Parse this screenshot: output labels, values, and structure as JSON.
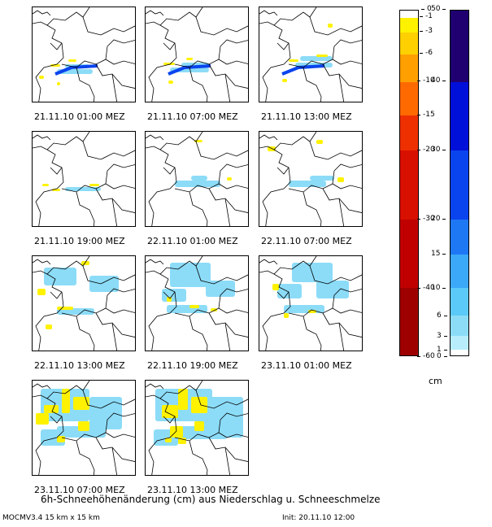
{
  "panels": [
    {
      "label": "21.11.10 01:00 MEZ"
    },
    {
      "label": "21.11.10 07:00 MEZ"
    },
    {
      "label": "21.11.10 13:00 MEZ"
    },
    {
      "label": "21.11.10 19:00 MEZ"
    },
    {
      "label": "22.11.10 01:00 MEZ"
    },
    {
      "label": "22.11.10 07:00 MEZ"
    },
    {
      "label": "22.11.10 13:00 MEZ"
    },
    {
      "label": "22.11.10 19:00 MEZ"
    },
    {
      "label": "23.11.10 01:00 MEZ"
    },
    {
      "label": "23.11.10 07:00 MEZ"
    },
    {
      "label": "23.11.10 13:00 MEZ"
    }
  ],
  "legend_negative": {
    "ticks": [
      "0",
      "-1",
      "-3",
      "-6",
      "-10",
      "-15",
      "-20",
      "-30",
      "-40",
      "-60"
    ],
    "colors": [
      "#ffffff",
      "#fff200",
      "#ffd000",
      "#ffa000",
      "#ff6a00",
      "#ee3000",
      "#d81000",
      "#c00000",
      "#9e0000"
    ]
  },
  "legend_positive": {
    "ticks": [
      "50",
      "40",
      "30",
      "20",
      "15",
      "10",
      "6",
      "3",
      "1",
      "0"
    ],
    "colors": [
      "#200070",
      "#0010d8",
      "#0a44ee",
      "#1e78f4",
      "#3ca8f8",
      "#5ccaf8",
      "#8cdcf8",
      "#b8eefc",
      "#ffffff"
    ]
  },
  "unit": "cm",
  "title": "6h-Schneehöhenänderung (cm) aus Niederschlag u. Schneeschmelze",
  "footer_left": "MOCMV3.4 15 km x 15 km",
  "footer_right": "Init: 20.11.10 12:00"
}
